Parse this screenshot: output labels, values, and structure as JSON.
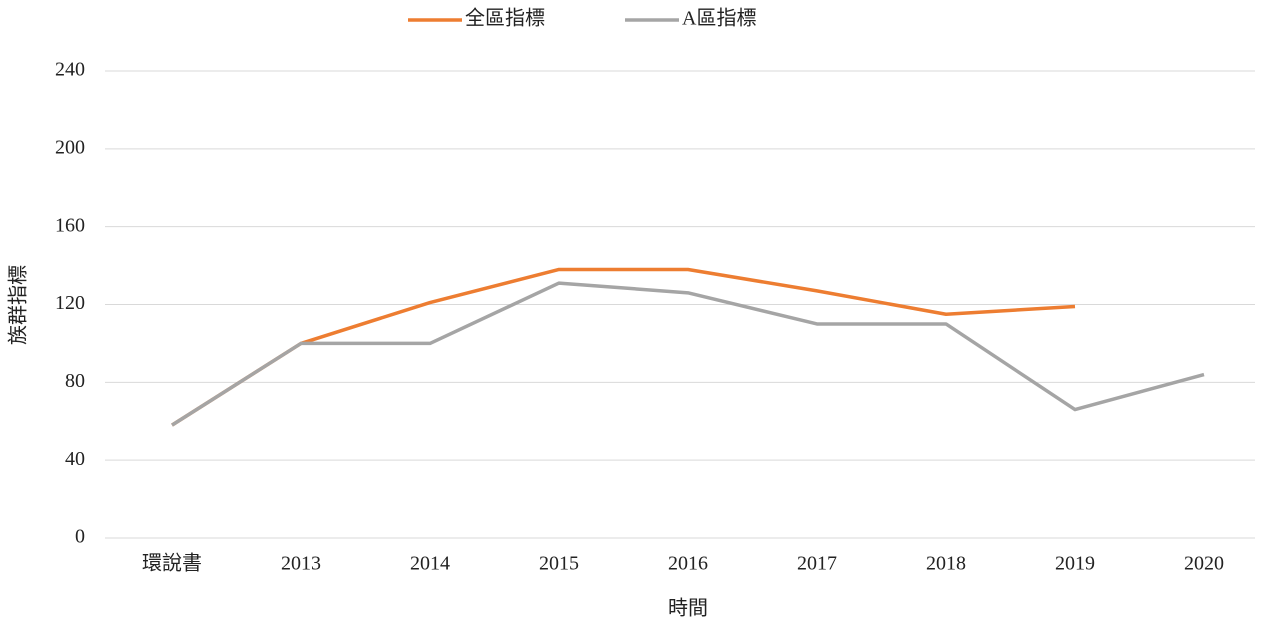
{
  "chart_data": {
    "type": "line",
    "x_label": "時間",
    "y_label": "族群指標",
    "categories": [
      "環說書",
      "2013",
      "2014",
      "2015",
      "2016",
      "2017",
      "2018",
      "2019",
      "2020"
    ],
    "series": [
      {
        "name": "全區指標",
        "color": "#ed7d31",
        "values": [
          58,
          100,
          121,
          138,
          138,
          127,
          115,
          119,
          null
        ]
      },
      {
        "name": "A區指標",
        "color": "#a5a5a5",
        "values": [
          58,
          100,
          100,
          131,
          126,
          110,
          110,
          66,
          84
        ]
      }
    ],
    "ylim": [
      0,
      240
    ],
    "yticks": [
      0,
      40,
      80,
      120,
      160,
      200,
      240
    ],
    "grid": true,
    "legend": "top"
  }
}
